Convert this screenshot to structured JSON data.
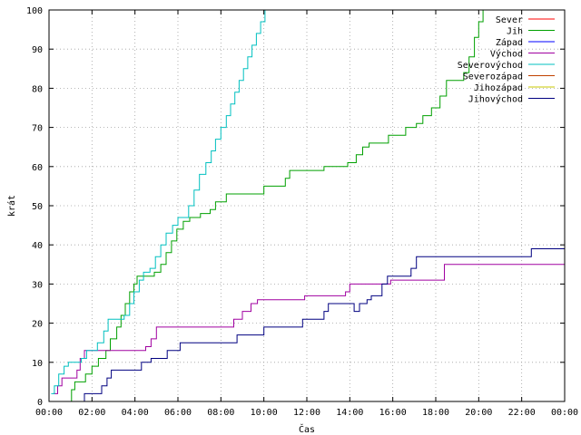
{
  "chart_data": {
    "type": "line",
    "xlabel": "Čas",
    "ylabel": "krát",
    "xlim": [
      0,
      24
    ],
    "ylim": [
      0,
      100
    ],
    "grid": true,
    "legend_position": "top-right",
    "x_ticks": [
      0,
      2,
      4,
      6,
      8,
      10,
      12,
      14,
      16,
      18,
      20,
      22,
      24
    ],
    "x_tick_labels": [
      "00:00",
      "02:00",
      "04:00",
      "06:00",
      "08:00",
      "10:00",
      "12:00",
      "14:00",
      "16:00",
      "18:00",
      "20:00",
      "22:00",
      "00:00"
    ],
    "y_ticks": [
      0,
      10,
      20,
      30,
      40,
      50,
      60,
      70,
      80,
      90,
      100
    ],
    "y_tick_labels": [
      "0",
      "10",
      "20",
      "30",
      "40",
      "50",
      "60",
      "70",
      "80",
      "90",
      "100"
    ],
    "series": [
      {
        "name": "Sever",
        "color": "#ff0000",
        "step": true,
        "points": []
      },
      {
        "name": "Jih",
        "color": "#00a000",
        "step": true,
        "points": [
          [
            0.9,
            0
          ],
          [
            1.05,
            3
          ],
          [
            1.2,
            5
          ],
          [
            1.7,
            7
          ],
          [
            2.0,
            9
          ],
          [
            2.3,
            11
          ],
          [
            2.65,
            13
          ],
          [
            2.85,
            16
          ],
          [
            3.15,
            19
          ],
          [
            3.35,
            22
          ],
          [
            3.55,
            25
          ],
          [
            3.75,
            28
          ],
          [
            3.95,
            30
          ],
          [
            4.1,
            32
          ],
          [
            4.9,
            33
          ],
          [
            5.2,
            35
          ],
          [
            5.45,
            38
          ],
          [
            5.7,
            41
          ],
          [
            5.95,
            44
          ],
          [
            6.25,
            46
          ],
          [
            6.55,
            47
          ],
          [
            7.05,
            48
          ],
          [
            7.5,
            49
          ],
          [
            7.75,
            51
          ],
          [
            8.25,
            53
          ],
          [
            10.0,
            55
          ],
          [
            11.0,
            57
          ],
          [
            11.2,
            59
          ],
          [
            12.8,
            60
          ],
          [
            13.9,
            61
          ],
          [
            14.3,
            63
          ],
          [
            14.6,
            65
          ],
          [
            14.9,
            66
          ],
          [
            15.8,
            68
          ],
          [
            16.6,
            70
          ],
          [
            17.1,
            71
          ],
          [
            17.4,
            73
          ],
          [
            17.8,
            75
          ],
          [
            18.2,
            78
          ],
          [
            18.5,
            82
          ],
          [
            19.3,
            84
          ],
          [
            19.55,
            88
          ],
          [
            19.8,
            93
          ],
          [
            20.0,
            97
          ],
          [
            20.2,
            100
          ]
        ]
      },
      {
        "name": "Západ",
        "color": "#0000ff",
        "step": true,
        "points": []
      },
      {
        "name": "Východ",
        "color": "#a000a0",
        "step": true,
        "points": [
          [
            0.2,
            2
          ],
          [
            0.4,
            4
          ],
          [
            0.6,
            6
          ],
          [
            1.3,
            8
          ],
          [
            1.45,
            11
          ],
          [
            1.65,
            13
          ],
          [
            4.5,
            14
          ],
          [
            4.75,
            16
          ],
          [
            5.0,
            19
          ],
          [
            8.6,
            21
          ],
          [
            9.0,
            23
          ],
          [
            9.4,
            25
          ],
          [
            9.7,
            26
          ],
          [
            11.9,
            27
          ],
          [
            13.8,
            28
          ],
          [
            14.0,
            30
          ],
          [
            15.9,
            31
          ],
          [
            18.4,
            35
          ],
          [
            24,
            35
          ]
        ]
      },
      {
        "name": "Severovýchod",
        "color": "#00c0c0",
        "step": true,
        "points": [
          [
            0.1,
            2
          ],
          [
            0.25,
            4
          ],
          [
            0.45,
            7
          ],
          [
            0.7,
            9
          ],
          [
            0.9,
            10
          ],
          [
            1.5,
            11
          ],
          [
            1.75,
            13
          ],
          [
            2.25,
            15
          ],
          [
            2.55,
            18
          ],
          [
            2.75,
            21
          ],
          [
            3.5,
            22
          ],
          [
            3.75,
            25
          ],
          [
            3.95,
            28
          ],
          [
            4.2,
            31
          ],
          [
            4.4,
            33
          ],
          [
            4.7,
            34
          ],
          [
            4.95,
            37
          ],
          [
            5.2,
            40
          ],
          [
            5.45,
            43
          ],
          [
            5.75,
            45
          ],
          [
            6.0,
            47
          ],
          [
            6.5,
            50
          ],
          [
            6.75,
            54
          ],
          [
            7.0,
            58
          ],
          [
            7.3,
            61
          ],
          [
            7.55,
            64
          ],
          [
            7.75,
            67
          ],
          [
            8.0,
            70
          ],
          [
            8.25,
            73
          ],
          [
            8.45,
            76
          ],
          [
            8.65,
            79
          ],
          [
            8.85,
            82
          ],
          [
            9.05,
            85
          ],
          [
            9.25,
            88
          ],
          [
            9.45,
            91
          ],
          [
            9.65,
            94
          ],
          [
            9.85,
            97
          ],
          [
            10.05,
            100
          ]
        ]
      },
      {
        "name": "Severozápad",
        "color": "#c04000",
        "step": true,
        "points": []
      },
      {
        "name": "Jihozápad",
        "color": "#c8c800",
        "step": true,
        "points": []
      },
      {
        "name": "Jihovýchod",
        "color": "#000080",
        "step": true,
        "points": [
          [
            1.55,
            0
          ],
          [
            1.65,
            2
          ],
          [
            2.45,
            4
          ],
          [
            2.7,
            6
          ],
          [
            2.9,
            8
          ],
          [
            4.3,
            10
          ],
          [
            4.75,
            11
          ],
          [
            5.5,
            13
          ],
          [
            6.1,
            15
          ],
          [
            8.75,
            17
          ],
          [
            10.0,
            19
          ],
          [
            11.8,
            21
          ],
          [
            12.8,
            23
          ],
          [
            13.0,
            25
          ],
          [
            14.2,
            23
          ],
          [
            14.45,
            25
          ],
          [
            14.8,
            26
          ],
          [
            15.0,
            27
          ],
          [
            15.5,
            30
          ],
          [
            15.75,
            32
          ],
          [
            16.85,
            34
          ],
          [
            17.1,
            37
          ],
          [
            22.2,
            37
          ],
          [
            22.45,
            39
          ],
          [
            24,
            39
          ]
        ]
      }
    ]
  }
}
